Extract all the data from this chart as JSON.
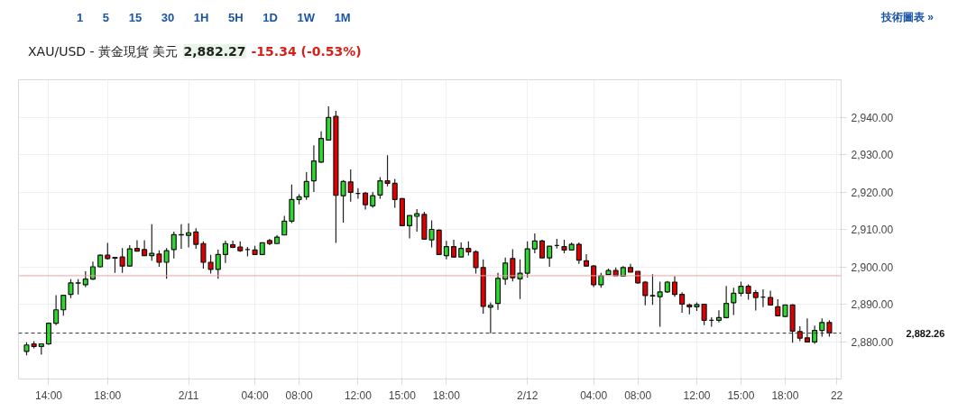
{
  "chart_data": {
    "type": "candlestick",
    "title": "XAU/USD - 黃金現貨 美元",
    "annotations": [
      "1 5 15 30 1H 5H 1D 1W 1M",
      "技術圖表 »",
      "2,882.27",
      "-15.34 (-0.53%)"
    ],
    "categories": [
      null,
      null,
      null,
      "14:00",
      null,
      null,
      null,
      null,
      null,
      null,
      null,
      "18:00",
      null,
      null,
      null,
      null,
      null,
      null,
      null,
      null,
      null,
      null,
      "2/11",
      null,
      null,
      null,
      null,
      null,
      null,
      null,
      null,
      "04:00",
      null,
      null,
      null,
      null,
      null,
      "08:00",
      null,
      null,
      null,
      null,
      null,
      null,
      null,
      "12:00",
      null,
      null,
      null,
      null,
      null,
      "15:00",
      null,
      null,
      null,
      null,
      null,
      "18:00",
      null,
      null,
      null,
      null,
      null,
      null,
      null,
      null,
      null,
      null,
      "2/12",
      null,
      null,
      null,
      null,
      null,
      null,
      null,
      null,
      "04:00",
      null,
      null,
      null,
      null,
      null,
      "08:00",
      null,
      null,
      null,
      null,
      null,
      null,
      null,
      "12:00",
      null,
      null,
      null,
      null,
      null,
      "15:00",
      null,
      null,
      null,
      null,
      null,
      "18:00",
      null,
      null,
      null,
      null,
      null,
      null,
      "22"
    ],
    "ohlc": [
      [
        2877.4,
        2879.8,
        2876.3,
        2879.1
      ],
      [
        2879.4,
        2880.1,
        2878.2,
        2878.7
      ],
      [
        2878.7,
        2879.4,
        2876.5,
        2879.4
      ],
      [
        2879.4,
        2885.1,
        2879.1,
        2884.9
      ],
      [
        2884.9,
        2892.4,
        2884.4,
        2888.5
      ],
      [
        2888.5,
        2892.4,
        2886.9,
        2892.4
      ],
      [
        2892.6,
        2896.7,
        2891.6,
        2895.7
      ],
      [
        2895.6,
        2896.7,
        2892.6,
        2895.7
      ],
      [
        2895.2,
        2898.8,
        2894.6,
        2896.7
      ],
      [
        2896.7,
        2901.4,
        2896.5,
        2900.0
      ],
      [
        2900.0,
        2903.3,
        2899.8,
        2903.1
      ],
      [
        2903.1,
        2906.4,
        2901.9,
        2902.2
      ],
      [
        2902.5,
        2902.5,
        2898.4,
        2902.3
      ],
      [
        2902.6,
        2905.0,
        2898.4,
        2900.2
      ],
      [
        2900.2,
        2905.8,
        2900.0,
        2904.8
      ],
      [
        2904.9,
        2907.1,
        2904.2,
        2904.2
      ],
      [
        2904.6,
        2907.1,
        2903.0,
        2903.0
      ],
      [
        2903.0,
        2911.4,
        2901.6,
        2903.6
      ],
      [
        2903.4,
        2904.4,
        2900.0,
        2901.2
      ],
      [
        2901.2,
        2905.0,
        2896.8,
        2904.3
      ],
      [
        2904.6,
        2909.4,
        2902.2,
        2908.6
      ],
      [
        2908.5,
        2911.4,
        2904.8,
        2908.6
      ],
      [
        2908.4,
        2911.6,
        2905.2,
        2909.1
      ],
      [
        2909.3,
        2910.3,
        2904.8,
        2906.0
      ],
      [
        2906.2,
        2906.8,
        2899.5,
        2901.2
      ],
      [
        2901.2,
        2903.2,
        2898.2,
        2899.3
      ],
      [
        2899.3,
        2904.6,
        2896.8,
        2903.3
      ],
      [
        2903.3,
        2907.0,
        2901.0,
        2906.2
      ],
      [
        2905.9,
        2907.0,
        2905.0,
        2905.2
      ],
      [
        2905.3,
        2906.8,
        2904.0,
        2904.3
      ],
      [
        2904.6,
        2905.3,
        2902.8,
        2904.6
      ],
      [
        2904.5,
        2905.6,
        2903.3,
        2903.3
      ],
      [
        2903.3,
        2906.4,
        2903.3,
        2906.4
      ],
      [
        2907.0,
        2907.5,
        2905.8,
        2906.2
      ],
      [
        2906.2,
        2908.5,
        2906.2,
        2907.9
      ],
      [
        2908.5,
        2913.6,
        2908.5,
        2912.2
      ],
      [
        2912.2,
        2922.0,
        2911.7,
        2918.0
      ],
      [
        2918.0,
        2919.4,
        2916.7,
        2918.7
      ],
      [
        2918.7,
        2925.3,
        2917.9,
        2922.8
      ],
      [
        2923.0,
        2932.5,
        2920.0,
        2928.3
      ],
      [
        2928.0,
        2936.2,
        2927.8,
        2934.3
      ],
      [
        2933.9,
        2942.9,
        2933.9,
        2939.9
      ],
      [
        2940.2,
        2941.7,
        2906.4,
        2919.1
      ],
      [
        2919.0,
        2923.2,
        2911.8,
        2922.8
      ],
      [
        2922.7,
        2926.0,
        2917.4,
        2919.9
      ],
      [
        2919.6,
        2921.0,
        2918.2,
        2919.6
      ],
      [
        2919.7,
        2920.0,
        2915.3,
        2916.6
      ],
      [
        2916.3,
        2920.0,
        2915.8,
        2919.0
      ],
      [
        2919.2,
        2924.0,
        2918.2,
        2923.0
      ],
      [
        2923.0,
        2929.8,
        2921.5,
        2922.3
      ],
      [
        2922.3,
        2923.5,
        2915.8,
        2918.0
      ],
      [
        2918.2,
        2918.4,
        2911.0,
        2911.0
      ],
      [
        2911.0,
        2913.7,
        2907.6,
        2913.7
      ],
      [
        2913.5,
        2915.4,
        2909.4,
        2914.2
      ],
      [
        2914.0,
        2914.7,
        2907.4,
        2907.4
      ],
      [
        2907.2,
        2912.4,
        2905.2,
        2910.0
      ],
      [
        2909.8,
        2910.0,
        2903.3,
        2903.3
      ],
      [
        2903.0,
        2906.9,
        2902.0,
        2905.4
      ],
      [
        2905.4,
        2907.2,
        2902.4,
        2902.6
      ],
      [
        2902.6,
        2906.5,
        2902.6,
        2904.9
      ],
      [
        2904.9,
        2906.8,
        2903.0,
        2904.0
      ],
      [
        2904.0,
        2904.4,
        2898.2,
        2899.8
      ],
      [
        2899.8,
        2902.0,
        2887.5,
        2889.4
      ],
      [
        2889.2,
        2890.5,
        2882.2,
        2889.7
      ],
      [
        2890.2,
        2898.4,
        2888.5,
        2896.9
      ],
      [
        2896.7,
        2902.5,
        2895.2,
        2901.0
      ],
      [
        2902.2,
        2904.7,
        2896.1,
        2897.1
      ],
      [
        2896.8,
        2902.0,
        2891.4,
        2898.3
      ],
      [
        2898.3,
        2906.8,
        2897.1,
        2904.8
      ],
      [
        2904.8,
        2908.9,
        2903.6,
        2906.9
      ],
      [
        2906.9,
        2907.2,
        2902.4,
        2902.4
      ],
      [
        2902.4,
        2905.5,
        2900.0,
        2905.5
      ],
      [
        2905.7,
        2907.5,
        2904.9,
        2905.7
      ],
      [
        2905.4,
        2907.2,
        2903.6,
        2904.5
      ],
      [
        2904.5,
        2906.5,
        2904.5,
        2906.0
      ],
      [
        2906.0,
        2906.5,
        2900.8,
        2901.8
      ],
      [
        2901.6,
        2903.4,
        2900.0,
        2900.2
      ],
      [
        2900.2,
        2900.5,
        2894.6,
        2895.2
      ],
      [
        2895.2,
        2898.4,
        2894.4,
        2897.6
      ],
      [
        2897.9,
        2899.5,
        2897.9,
        2899.0
      ],
      [
        2899.0,
        2899.8,
        2897.6,
        2897.6
      ],
      [
        2897.5,
        2900.2,
        2897.5,
        2899.8
      ],
      [
        2899.8,
        2900.8,
        2898.6,
        2898.6
      ],
      [
        2898.8,
        2898.8,
        2895.5,
        2895.7
      ],
      [
        2895.9,
        2896.2,
        2889.7,
        2892.3
      ],
      [
        2892.3,
        2898.0,
        2889.8,
        2892.2
      ],
      [
        2892.0,
        2896.0,
        2884.0,
        2893.3
      ],
      [
        2893.3,
        2896.2,
        2893.0,
        2895.9
      ],
      [
        2895.9,
        2897.5,
        2892.0,
        2892.6
      ],
      [
        2892.6,
        2893.2,
        2887.7,
        2890.0
      ],
      [
        2889.8,
        2890.2,
        2887.3,
        2889.3
      ],
      [
        2889.3,
        2890.5,
        2888.2,
        2889.9
      ],
      [
        2890.0,
        2890.0,
        2884.4,
        2885.7
      ],
      [
        2885.7,
        2886.5,
        2884.0,
        2885.7
      ],
      [
        2885.7,
        2888.4,
        2885.1,
        2886.4
      ],
      [
        2886.4,
        2894.9,
        2886.2,
        2890.2
      ],
      [
        2890.4,
        2894.4,
        2887.1,
        2892.9
      ],
      [
        2892.9,
        2896.0,
        2892.1,
        2894.8
      ],
      [
        2894.8,
        2895.3,
        2891.2,
        2892.9
      ],
      [
        2893.1,
        2893.8,
        2888.3,
        2891.8
      ],
      [
        2891.9,
        2894.0,
        2889.2,
        2891.9
      ],
      [
        2891.8,
        2893.6,
        2889.8,
        2889.8
      ],
      [
        2889.3,
        2891.3,
        2886.9,
        2886.9
      ],
      [
        2886.7,
        2889.8,
        2886.7,
        2889.8
      ],
      [
        2889.8,
        2890.0,
        2879.7,
        2882.8
      ],
      [
        2882.7,
        2884.1,
        2880.1,
        2880.9
      ],
      [
        2881.0,
        2886.2,
        2879.9,
        2879.9
      ],
      [
        2879.9,
        2884.3,
        2879.4,
        2883.0
      ],
      [
        2883.0,
        2886.2,
        2881.3,
        2885.1
      ],
      [
        2885.1,
        2885.7,
        2881.3,
        2882.3
      ],
      null
    ],
    "ylim": [
      2870,
      2950
    ],
    "yticks": [
      {
        "value": 2880,
        "label": "2,880.00"
      },
      {
        "value": 2890,
        "label": "2,890.00"
      },
      {
        "value": 2900,
        "label": "2,900.00"
      },
      {
        "value": 2910,
        "label": "2,910.00"
      },
      {
        "value": 2920,
        "label": "2,920.00"
      },
      {
        "value": 2930,
        "label": "2,930.00"
      },
      {
        "value": 2940,
        "label": "2,940.00"
      }
    ],
    "ref_lines": [
      {
        "axis": "y",
        "value": 2897.61,
        "color": "#f4a0a0",
        "line_style": "solid"
      },
      {
        "axis": "y",
        "value": 2882.26,
        "label": "2,882.26",
        "color": "#333333",
        "line_style": "dashed"
      }
    ],
    "grid": true
  }
}
